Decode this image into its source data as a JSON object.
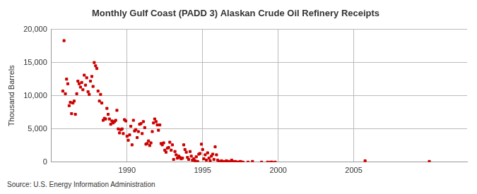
{
  "chart_data": {
    "type": "scatter",
    "title": "Monthly Gulf Coast (PADD 3) Alaskan Crude Oil Refinery Receipts",
    "y_label": "Thousand Barrels",
    "source": "Source: U.S. Energy Information Administration",
    "color": "#cc0000",
    "marker": "square",
    "grid": true,
    "xlim": [
      1985,
      2012.5
    ],
    "xticks": [
      1990,
      1995,
      2000,
      2005
    ],
    "ylim": [
      0,
      20000
    ],
    "yticks": [
      0,
      {
        "value": 5000,
        "label": "5,000"
      },
      {
        "value": 10000,
        "label": "10,000"
      },
      {
        "value": 15000,
        "label": "15,000"
      },
      {
        "value": 20000,
        "label": "20,000"
      }
    ],
    "x": [
      1985.75,
      1985.83,
      1985.92,
      1986,
      1986.08,
      1986.17,
      1986.25,
      1986.33,
      1986.42,
      1986.5,
      1986.58,
      1986.67,
      1986.75,
      1986.83,
      1986.92,
      1987,
      1987.08,
      1987.17,
      1987.25,
      1987.33,
      1987.42,
      1987.5,
      1987.58,
      1987.67,
      1987.75,
      1987.83,
      1987.92,
      1988,
      1988.08,
      1988.17,
      1988.25,
      1988.33,
      1988.42,
      1988.5,
      1988.58,
      1988.67,
      1988.75,
      1988.83,
      1988.92,
      1989,
      1989.08,
      1989.17,
      1989.25,
      1989.33,
      1989.42,
      1989.5,
      1989.58,
      1989.67,
      1989.75,
      1989.83,
      1989.92,
      1990,
      1990.08,
      1990.17,
      1990.25,
      1990.33,
      1990.42,
      1990.5,
      1990.58,
      1990.67,
      1990.75,
      1990.83,
      1990.92,
      1991,
      1991.08,
      1991.17,
      1991.25,
      1991.33,
      1991.42,
      1991.5,
      1991.58,
      1991.67,
      1991.75,
      1991.83,
      1991.92,
      1992,
      1992.08,
      1992.17,
      1992.25,
      1992.33,
      1992.42,
      1992.5,
      1992.58,
      1992.67,
      1992.75,
      1992.83,
      1992.92,
      1993,
      1993.08,
      1993.17,
      1993.25,
      1993.33,
      1993.42,
      1993.5,
      1993.58,
      1993.67,
      1993.75,
      1993.83,
      1993.92,
      1994,
      1994.08,
      1994.17,
      1994.25,
      1994.33,
      1994.42,
      1994.5,
      1994.58,
      1994.67,
      1994.75,
      1994.83,
      1994.92,
      1995,
      1995.08,
      1995.17,
      1995.25,
      1995.33,
      1995.42,
      1995.5,
      1995.58,
      1995.67,
      1995.75,
      1995.83,
      1995.92,
      1996,
      1996.08,
      1996.17,
      1996.25,
      1996.33,
      1996.42,
      1996.5,
      1996.58,
      1996.67,
      1996.75,
      1996.83,
      1996.92,
      1997,
      1997.08,
      1997.17,
      1997.25,
      1997.33,
      1997.42,
      1997.5,
      1997.58,
      1997.67,
      1998,
      1998.3,
      1998.9,
      1999.3,
      1999.5,
      1999.6,
      1999.8,
      2005.75,
      2010
    ],
    "values": [
      10700,
      18300,
      10300,
      12500,
      11800,
      8500,
      9000,
      7300,
      8900,
      9200,
      7200,
      10300,
      12200,
      11800,
      11300,
      12000,
      10900,
      13100,
      11600,
      12700,
      10600,
      10200,
      12200,
      12900,
      11400,
      15000,
      14500,
      14100,
      10700,
      9200,
      10200,
      8900,
      6300,
      6600,
      6500,
      8100,
      7200,
      6500,
      5700,
      6200,
      5900,
      6100,
      6300,
      7800,
      5000,
      4400,
      4900,
      5000,
      4300,
      6400,
      6200,
      3900,
      3300,
      4100,
      5400,
      2600,
      6300,
      4700,
      4900,
      3700,
      4600,
      5700,
      5800,
      4300,
      6100,
      5200,
      2700,
      2800,
      3200,
      2500,
      2900,
      4600,
      5900,
      6500,
      6100,
      5600,
      4800,
      5600,
      2800,
      2600,
      2900,
      1800,
      1500,
      2100,
      2200,
      3000,
      1800,
      2600,
      400,
      1600,
      1100,
      600,
      900,
      700,
      500,
      600,
      2600,
      1900,
      1500,
      700,
      400,
      1600,
      900,
      300,
      500,
      200,
      800,
      100,
      1200,
      1300,
      2700,
      1900,
      500,
      1100,
      300,
      1400,
      600,
      200,
      900,
      1200,
      400,
      2300,
      1100,
      300,
      100,
      0,
      200,
      100,
      0,
      100,
      200,
      0,
      100,
      0,
      300,
      100,
      0,
      100,
      0,
      0,
      0,
      100,
      0,
      0,
      0,
      100,
      0,
      0,
      0,
      0,
      0,
      200,
      100
    ]
  }
}
